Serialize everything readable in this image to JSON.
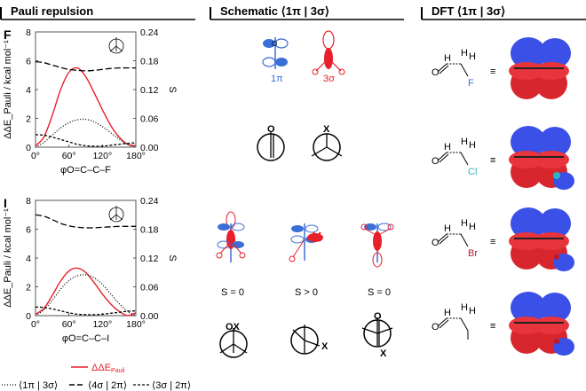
{
  "headers": {
    "pauli": "Pauli repulsion",
    "schematic": "Schematic ⟨1π | 3σ⟩",
    "dft": "DFT ⟨1π | 3σ⟩"
  },
  "colors": {
    "red": "#e8202a",
    "blue": "#3a6fd8",
    "black": "#000000"
  },
  "chart_data": [
    {
      "type": "line",
      "panel_label": "F",
      "ylabel_left": "ΔΔE_Pauli / kcal mol⁻¹",
      "ylabel_right": "S",
      "xlabel": "φO=C–C–F",
      "xlim": [
        0,
        180
      ],
      "ylim_left": [
        0,
        8
      ],
      "ylim_right": [
        0,
        0.24
      ],
      "x_ticks": [
        "0°",
        "60°",
        "120°",
        "180°"
      ],
      "y_ticks_left": [
        "0",
        "2",
        "4",
        "6",
        "8"
      ],
      "y_ticks_right": [
        "0.00",
        "0.06",
        "0.12",
        "0.18",
        "0.24"
      ],
      "series": [
        {
          "name": "ΔΔE_Pauli",
          "axis": "left",
          "style": "solid",
          "color": "#e8202a",
          "x": [
            0,
            15,
            30,
            45,
            60,
            75,
            90,
            105,
            120,
            135,
            150,
            165,
            180
          ],
          "values": [
            0.1,
            0.7,
            2.2,
            4.0,
            5.2,
            5.5,
            4.9,
            3.8,
            2.6,
            1.5,
            0.7,
            0.2,
            0.1
          ]
        },
        {
          "name": "⟨1π | 3σ⟩",
          "axis": "right",
          "style": "dotted",
          "color": "#000000",
          "x": [
            0,
            15,
            30,
            45,
            60,
            75,
            90,
            105,
            120,
            135,
            150,
            165,
            180
          ],
          "values": [
            0.0,
            0.01,
            0.025,
            0.04,
            0.051,
            0.057,
            0.058,
            0.053,
            0.043,
            0.03,
            0.017,
            0.006,
            0.0
          ]
        },
        {
          "name": "⟨4σ | 2π⟩",
          "axis": "right",
          "style": "dashed",
          "color": "#000000",
          "x": [
            0,
            15,
            30,
            45,
            60,
            75,
            90,
            105,
            120,
            135,
            150,
            165,
            180
          ],
          "values": [
            0.178,
            0.176,
            0.171,
            0.166,
            0.162,
            0.16,
            0.159,
            0.16,
            0.162,
            0.164,
            0.165,
            0.165,
            0.165
          ]
        },
        {
          "name": "⟨3σ | 2π⟩",
          "axis": "right",
          "style": "dashdot",
          "color": "#000000",
          "x": [
            0,
            15,
            30,
            45,
            60,
            75,
            90,
            105,
            120,
            135,
            150,
            165,
            180
          ],
          "values": [
            0.026,
            0.025,
            0.021,
            0.016,
            0.011,
            0.006,
            0.003,
            0.002,
            0.002,
            0.004,
            0.006,
            0.008,
            0.009
          ]
        }
      ]
    },
    {
      "type": "line",
      "panel_label": "I",
      "ylabel_left": "ΔΔE_Pauli / kcal mol⁻¹",
      "ylabel_right": "S",
      "xlabel": "φO=C–C–I",
      "xlim": [
        0,
        180
      ],
      "ylim_left": [
        0,
        8
      ],
      "ylim_right": [
        0,
        0.24
      ],
      "x_ticks": [
        "0°",
        "60°",
        "120°",
        "180°"
      ],
      "y_ticks_left": [
        "0",
        "2",
        "4",
        "6",
        "8"
      ],
      "y_ticks_right": [
        "0.00",
        "0.06",
        "0.12",
        "0.18",
        "0.24"
      ],
      "series": [
        {
          "name": "ΔΔE_Pauli",
          "axis": "left",
          "style": "solid",
          "color": "#e8202a",
          "x": [
            0,
            15,
            30,
            45,
            60,
            75,
            90,
            105,
            120,
            135,
            150,
            165,
            180
          ],
          "values": [
            0.1,
            0.5,
            1.4,
            2.4,
            3.1,
            3.3,
            3.0,
            2.3,
            1.5,
            0.8,
            0.3,
            0.0,
            0.2
          ]
        },
        {
          "name": "⟨1π | 3σ⟩",
          "axis": "right",
          "style": "dotted",
          "color": "#000000",
          "x": [
            0,
            15,
            30,
            45,
            60,
            75,
            90,
            105,
            120,
            135,
            150,
            165,
            180
          ],
          "values": [
            0.0,
            0.012,
            0.032,
            0.055,
            0.073,
            0.083,
            0.085,
            0.079,
            0.065,
            0.045,
            0.025,
            0.009,
            0.0
          ]
        },
        {
          "name": "⟨4σ | 2π⟩",
          "axis": "right",
          "style": "dashed",
          "color": "#000000",
          "x": [
            0,
            15,
            30,
            45,
            60,
            75,
            90,
            105,
            120,
            135,
            150,
            165,
            180
          ],
          "values": [
            0.21,
            0.207,
            0.2,
            0.192,
            0.187,
            0.184,
            0.183,
            0.183,
            0.184,
            0.185,
            0.186,
            0.186,
            0.186
          ]
        },
        {
          "name": "⟨3σ | 2π⟩",
          "axis": "right",
          "style": "dashdot",
          "color": "#000000",
          "x": [
            0,
            15,
            30,
            45,
            60,
            75,
            90,
            105,
            120,
            135,
            150,
            165,
            180
          ],
          "values": [
            0.018,
            0.017,
            0.014,
            0.01,
            0.006,
            0.003,
            0.002,
            0.002,
            0.003,
            0.005,
            0.007,
            0.009,
            0.01
          ]
        }
      ]
    }
  ],
  "legend": {
    "pauli": "ΔΔE",
    "pauli_sub": "Pauli",
    "s1": "⟨1π | 3σ⟩",
    "s2": "⟨4σ | 2π⟩",
    "s3": "⟨3σ | 2π⟩"
  },
  "schematic": {
    "label_1pi": "1π",
    "label_3sigma": "3σ",
    "newman_X": "X",
    "newman_O": "O",
    "s_labels": [
      "S = 0",
      "S > 0",
      "S = 0"
    ],
    "newman_bottom": [
      "OX",
      "X",
      "X"
    ]
  },
  "dft": {
    "halogens": [
      "F",
      "Cl",
      "Br",
      ""
    ],
    "equiv": "≡",
    "atom_O": "O",
    "atom_H": "H"
  }
}
